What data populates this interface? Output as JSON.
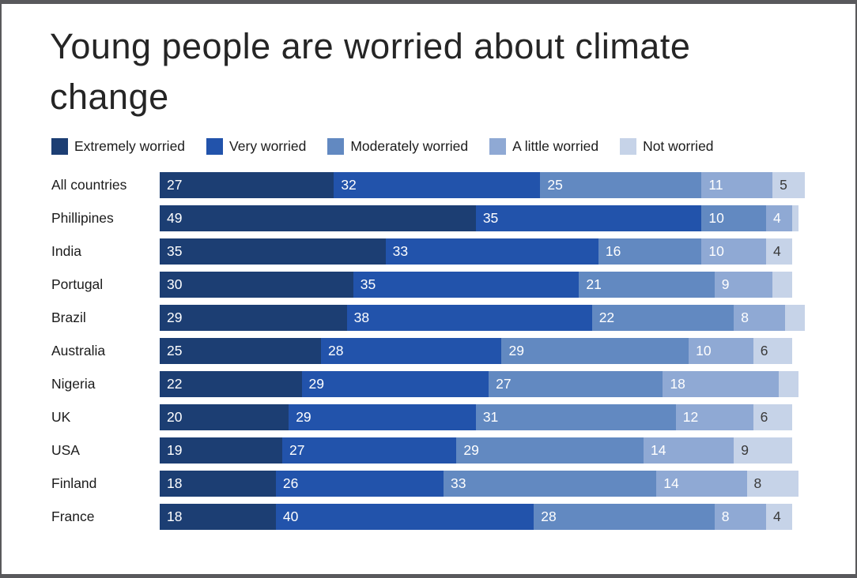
{
  "title": "Young people are worried about climate change",
  "chart_data": {
    "type": "bar",
    "stacked": true,
    "orientation": "horizontal",
    "title": "Young people are worried about climate change",
    "x_max": 100,
    "min_label_value": 4,
    "series_labels": [
      "Extremely worried",
      "Very worried",
      "Moderately worried",
      "A little worried",
      "Not worried"
    ],
    "series_colors": [
      "#1c3e73",
      "#2253ab",
      "#6289c1",
      "#8fa9d4",
      "#c6d3e8"
    ],
    "series_label_text_colors": [
      "#ffffff",
      "#ffffff",
      "#ffffff",
      "#ffffff",
      "#3a3a3a"
    ],
    "categories": [
      "All countries",
      "Phillipines",
      "India",
      "Portugal",
      "Brazil",
      "Australia",
      "Nigeria",
      "UK",
      "USA",
      "Finland",
      "France"
    ],
    "rows": [
      [
        27,
        32,
        25,
        11,
        5
      ],
      [
        49,
        35,
        10,
        4,
        1
      ],
      [
        35,
        33,
        16,
        10,
        4
      ],
      [
        30,
        35,
        21,
        9,
        3
      ],
      [
        29,
        38,
        22,
        8,
        3
      ],
      [
        25,
        28,
        29,
        10,
        6
      ],
      [
        22,
        29,
        27,
        18,
        3
      ],
      [
        20,
        29,
        31,
        12,
        6
      ],
      [
        19,
        27,
        29,
        14,
        9
      ],
      [
        18,
        26,
        33,
        14,
        8
      ],
      [
        18,
        40,
        28,
        8,
        4
      ]
    ]
  }
}
